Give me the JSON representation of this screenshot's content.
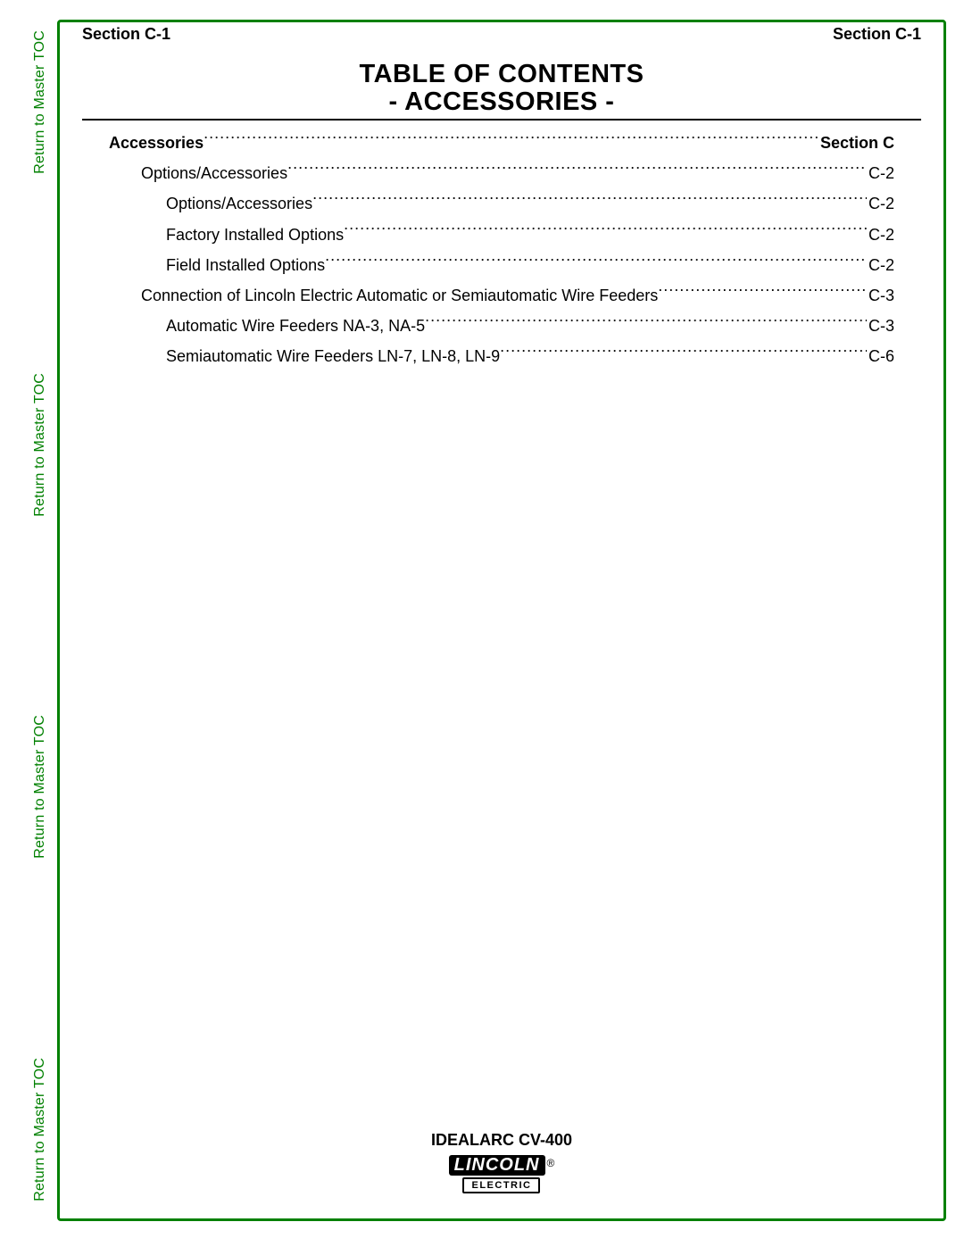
{
  "header": {
    "left": "Section C-1",
    "right": "Section C-1"
  },
  "title": {
    "line1": "TABLE OF CONTENTS",
    "line2": "- ACCESSORIES -"
  },
  "side_link_label": "Return to Master TOC",
  "side_link_color": "#008000",
  "frame_color": "#008000",
  "toc": [
    {
      "label": "Accessories",
      "page": "Section C",
      "indent": 0,
      "bold": true
    },
    {
      "label": "Options/Accessories ",
      "page": "C-2",
      "indent": 1,
      "bold": false
    },
    {
      "label": "Options/Accessories",
      "page": "C-2",
      "indent": 2,
      "bold": false
    },
    {
      "label": "Factory Installed Options",
      "page": "C-2",
      "indent": 2,
      "bold": false
    },
    {
      "label": "Field Installed Options",
      "page": "C-2",
      "indent": 2,
      "bold": false
    },
    {
      "label": "Connection of Lincoln Electric Automatic or Semiautomatic Wire Feeders",
      "page": "C-3",
      "indent": 1,
      "bold": false
    },
    {
      "label": "Automatic Wire Feeders NA-3, NA-5",
      "page": "C-3",
      "indent": 2,
      "bold": false
    },
    {
      "label": "Semiautomatic Wire Feeders LN-7, LN-8, LN-9",
      "page": "C-6",
      "indent": 2,
      "bold": false
    }
  ],
  "footer": {
    "product": "IDEALARC CV-400",
    "logo_word": "LINCOLN",
    "logo_reg": "®",
    "logo_sub": "ELECTRIC"
  },
  "typography": {
    "body_fontsize": 18,
    "title_fontsize": 29,
    "side_fontsize": 16,
    "footer_fontsize": 18
  },
  "colors": {
    "text": "#000000",
    "background": "#ffffff",
    "accent": "#008000"
  }
}
